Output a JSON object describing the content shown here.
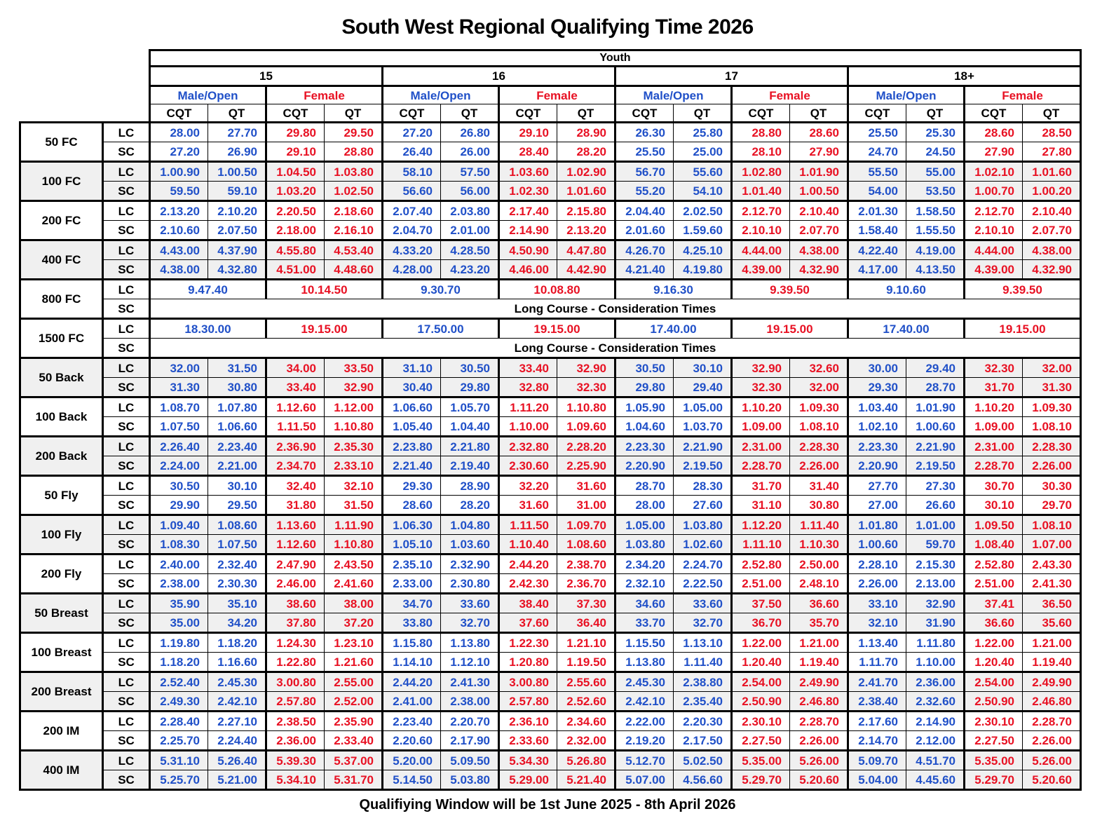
{
  "title": "South West Regional Qualifying Time 2026",
  "footer": "Qualifiying Window will be 1st June 2025 - 8th April 2026",
  "colors": {
    "male_time": "#2050C8",
    "female_time": "#E81123",
    "shaded_band": "#F0F0F0",
    "grid": "#000000"
  },
  "header": {
    "group_label": "Youth",
    "age_groups": [
      "15",
      "16",
      "17",
      "18+"
    ],
    "gender_labels": [
      "Male/Open",
      "Female"
    ],
    "time_type_labels": [
      "CQT",
      "QT"
    ],
    "course_labels": [
      "LC",
      "SC"
    ]
  },
  "consideration_note": "Long Course - Consideration Times",
  "events": [
    {
      "name": "50 FC",
      "shaded": false,
      "lc": [
        "28.00",
        "27.70",
        "29.80",
        "29.50",
        "27.20",
        "26.80",
        "29.10",
        "28.90",
        "26.30",
        "25.80",
        "28.80",
        "28.60",
        "25.50",
        "25.30",
        "28.60",
        "28.50"
      ],
      "sc": [
        "27.20",
        "26.90",
        "29.10",
        "28.80",
        "26.40",
        "26.00",
        "28.40",
        "28.20",
        "25.50",
        "25.00",
        "28.10",
        "27.90",
        "24.70",
        "24.50",
        "27.90",
        "27.80"
      ]
    },
    {
      "name": "100 FC",
      "shaded": true,
      "lc": [
        "1.00.90",
        "1.00.50",
        "1.04.50",
        "1.03.80",
        "58.10",
        "57.50",
        "1.03.60",
        "1.02.90",
        "56.70",
        "55.60",
        "1.02.80",
        "1.01.90",
        "55.50",
        "55.00",
        "1.02.10",
        "1.01.60"
      ],
      "sc": [
        "59.50",
        "59.10",
        "1.03.20",
        "1.02.50",
        "56.60",
        "56.00",
        "1.02.30",
        "1.01.60",
        "55.20",
        "54.10",
        "1.01.40",
        "1.00.50",
        "54.00",
        "53.50",
        "1.00.70",
        "1.00.20"
      ]
    },
    {
      "name": "200 FC",
      "shaded": false,
      "lc": [
        "2.13.20",
        "2.10.20",
        "2.20.50",
        "2.18.60",
        "2.07.40",
        "2.03.80",
        "2.17.40",
        "2.15.80",
        "2.04.40",
        "2.02.50",
        "2.12.70",
        "2.10.40",
        "2.01.30",
        "1.58.50",
        "2.12.70",
        "2.10.40"
      ],
      "sc": [
        "2.10.60",
        "2.07.50",
        "2.18.00",
        "2.16.10",
        "2.04.70",
        "2.01.00",
        "2.14.90",
        "2.13.20",
        "2.01.60",
        "1.59.60",
        "2.10.10",
        "2.07.70",
        "1.58.40",
        "1.55.50",
        "2.10.10",
        "2.07.70"
      ]
    },
    {
      "name": "400 FC",
      "shaded": true,
      "lc": [
        "4.43.00",
        "4.37.90",
        "4.55.80",
        "4.53.40",
        "4.33.20",
        "4.28.50",
        "4.50.90",
        "4.47.80",
        "4.26.70",
        "4.25.10",
        "4.44.00",
        "4.38.00",
        "4.22.40",
        "4.19.00",
        "4.44.00",
        "4.38.00"
      ],
      "sc": [
        "4.38.00",
        "4.32.80",
        "4.51.00",
        "4.48.60",
        "4.28.00",
        "4.23.20",
        "4.46.00",
        "4.42.90",
        "4.21.40",
        "4.19.80",
        "4.39.00",
        "4.32.90",
        "4.17.00",
        "4.13.50",
        "4.39.00",
        "4.32.90"
      ]
    },
    {
      "name": "800 FC",
      "shaded": false,
      "merged": true,
      "lc": [
        "9.47.40",
        "10.14.50",
        "9.30.70",
        "10.08.80",
        "9.16.30",
        "9.39.50",
        "9.10.60",
        "9.39.50"
      ],
      "sc_note": "Long Course - Consideration Times"
    },
    {
      "name": "1500 FC",
      "shaded": false,
      "merged": true,
      "lc": [
        "18.30.00",
        "19.15.00",
        "17.50.00",
        "19.15.00",
        "17.40.00",
        "19.15.00",
        "17.40.00",
        "19.15.00"
      ],
      "sc_note": "Long Course - Consideration Times"
    },
    {
      "name": "50 Back",
      "shaded": true,
      "lc": [
        "32.00",
        "31.50",
        "34.00",
        "33.50",
        "31.10",
        "30.50",
        "33.40",
        "32.90",
        "30.50",
        "30.10",
        "32.90",
        "32.60",
        "30.00",
        "29.40",
        "32.30",
        "32.00"
      ],
      "sc": [
        "31.30",
        "30.80",
        "33.40",
        "32.90",
        "30.40",
        "29.80",
        "32.80",
        "32.30",
        "29.80",
        "29.40",
        "32.30",
        "32.00",
        "29.30",
        "28.70",
        "31.70",
        "31.30"
      ]
    },
    {
      "name": "100 Back",
      "shaded": false,
      "lc": [
        "1.08.70",
        "1.07.80",
        "1.12.60",
        "1.12.00",
        "1.06.60",
        "1.05.70",
        "1.11.20",
        "1.10.80",
        "1.05.90",
        "1.05.00",
        "1.10.20",
        "1.09.30",
        "1.03.40",
        "1.01.90",
        "1.10.20",
        "1.09.30"
      ],
      "sc": [
        "1.07.50",
        "1.06.60",
        "1.11.50",
        "1.10.80",
        "1.05.40",
        "1.04.40",
        "1.10.00",
        "1.09.60",
        "1.04.60",
        "1.03.70",
        "1.09.00",
        "1.08.10",
        "1.02.10",
        "1.00.60",
        "1.09.00",
        "1.08.10"
      ]
    },
    {
      "name": "200 Back",
      "shaded": true,
      "lc": [
        "2.26.40",
        "2.23.40",
        "2.36.90",
        "2.35.30",
        "2.23.80",
        "2.21.80",
        "2.32.80",
        "2.28.20",
        "2.23.30",
        "2.21.90",
        "2.31.00",
        "2.28.30",
        "2.23.30",
        "2.21.90",
        "2.31.00",
        "2.28.30"
      ],
      "sc": [
        "2.24.00",
        "2.21.00",
        "2.34.70",
        "2.33.10",
        "2.21.40",
        "2.19.40",
        "2.30.60",
        "2.25.90",
        "2.20.90",
        "2.19.50",
        "2.28.70",
        "2.26.00",
        "2.20.90",
        "2.19.50",
        "2.28.70",
        "2.26.00"
      ]
    },
    {
      "name": "50 Fly",
      "shaded": false,
      "lc": [
        "30.50",
        "30.10",
        "32.40",
        "32.10",
        "29.30",
        "28.90",
        "32.20",
        "31.60",
        "28.70",
        "28.30",
        "31.70",
        "31.40",
        "27.70",
        "27.30",
        "30.70",
        "30.30"
      ],
      "sc": [
        "29.90",
        "29.50",
        "31.80",
        "31.50",
        "28.60",
        "28.20",
        "31.60",
        "31.00",
        "28.00",
        "27.60",
        "31.10",
        "30.80",
        "27.00",
        "26.60",
        "30.10",
        "29.70"
      ]
    },
    {
      "name": "100 Fly",
      "shaded": true,
      "lc": [
        "1.09.40",
        "1.08.60",
        "1.13.60",
        "1.11.90",
        "1.06.30",
        "1.04.80",
        "1.11.50",
        "1.09.70",
        "1.05.00",
        "1.03.80",
        "1.12.20",
        "1.11.40",
        "1.01.80",
        "1.01.00",
        "1.09.50",
        "1.08.10"
      ],
      "sc": [
        "1.08.30",
        "1.07.50",
        "1.12.60",
        "1.10.80",
        "1.05.10",
        "1.03.60",
        "1.10.40",
        "1.08.60",
        "1.03.80",
        "1.02.60",
        "1.11.10",
        "1.10.30",
        "1.00.60",
        "59.70",
        "1.08.40",
        "1.07.00"
      ]
    },
    {
      "name": "200 Fly",
      "shaded": false,
      "lc": [
        "2.40.00",
        "2.32.40",
        "2.47.90",
        "2.43.50",
        "2.35.10",
        "2.32.90",
        "2.44.20",
        "2.38.70",
        "2.34.20",
        "2.24.70",
        "2.52.80",
        "2.50.00",
        "2.28.10",
        "2.15.30",
        "2.52.80",
        "2.43.30"
      ],
      "sc": [
        "2.38.00",
        "2.30.30",
        "2.46.00",
        "2.41.60",
        "2.33.00",
        "2.30.80",
        "2.42.30",
        "2.36.70",
        "2.32.10",
        "2.22.50",
        "2.51.00",
        "2.48.10",
        "2.26.00",
        "2.13.00",
        "2.51.00",
        "2.41.30"
      ]
    },
    {
      "name": "50 Breast",
      "shaded": true,
      "lc": [
        "35.90",
        "35.10",
        "38.60",
        "38.00",
        "34.70",
        "33.60",
        "38.40",
        "37.30",
        "34.60",
        "33.60",
        "37.50",
        "36.60",
        "33.10",
        "32.90",
        "37.41",
        "36.50"
      ],
      "sc": [
        "35.00",
        "34.20",
        "37.80",
        "37.20",
        "33.80",
        "32.70",
        "37.60",
        "36.40",
        "33.70",
        "32.70",
        "36.70",
        "35.70",
        "32.10",
        "31.90",
        "36.60",
        "35.60"
      ]
    },
    {
      "name": "100 Breast",
      "shaded": false,
      "lc": [
        "1.19.80",
        "1.18.20",
        "1.24.30",
        "1.23.10",
        "1.15.80",
        "1.13.80",
        "1.22.30",
        "1.21.10",
        "1.15.50",
        "1.13.10",
        "1.22.00",
        "1.21.00",
        "1.13.40",
        "1.11.80",
        "1.22.00",
        "1.21.00"
      ],
      "sc": [
        "1.18.20",
        "1.16.60",
        "1.22.80",
        "1.21.60",
        "1.14.10",
        "1.12.10",
        "1.20.80",
        "1.19.50",
        "1.13.80",
        "1.11.40",
        "1.20.40",
        "1.19.40",
        "1.11.70",
        "1.10.00",
        "1.20.40",
        "1.19.40"
      ]
    },
    {
      "name": "200 Breast",
      "shaded": true,
      "lc": [
        "2.52.40",
        "2.45.30",
        "3.00.80",
        "2.55.00",
        "2.44.20",
        "2.41.30",
        "3.00.80",
        "2.55.60",
        "2.45.30",
        "2.38.80",
        "2.54.00",
        "2.49.90",
        "2.41.70",
        "2.36.00",
        "2.54.00",
        "2.49.90"
      ],
      "sc": [
        "2.49.30",
        "2.42.10",
        "2.57.80",
        "2.52.00",
        "2.41.00",
        "2.38.00",
        "2.57.80",
        "2.52.60",
        "2.42.10",
        "2.35.40",
        "2.50.90",
        "2.46.80",
        "2.38.40",
        "2.32.60",
        "2.50.90",
        "2.46.80"
      ]
    },
    {
      "name": "200 IM",
      "shaded": false,
      "lc": [
        "2.28.40",
        "2.27.10",
        "2.38.50",
        "2.35.90",
        "2.23.40",
        "2.20.70",
        "2.36.10",
        "2.34.60",
        "2.22.00",
        "2.20.30",
        "2.30.10",
        "2.28.70",
        "2.17.60",
        "2.14.90",
        "2.30.10",
        "2.28.70"
      ],
      "sc": [
        "2.25.70",
        "2.24.40",
        "2.36.00",
        "2.33.40",
        "2.20.60",
        "2.17.90",
        "2.33.60",
        "2.32.00",
        "2.19.20",
        "2.17.50",
        "2.27.50",
        "2.26.00",
        "2.14.70",
        "2.12.00",
        "2.27.50",
        "2.26.00"
      ]
    },
    {
      "name": "400 IM",
      "shaded": true,
      "lc": [
        "5.31.10",
        "5.26.40",
        "5.39.30",
        "5.37.00",
        "5.20.00",
        "5.09.50",
        "5.34.30",
        "5.26.80",
        "5.12.70",
        "5.02.50",
        "5.35.00",
        "5.26.00",
        "5.09.70",
        "4.51.70",
        "5.35.00",
        "5.26.00"
      ],
      "sc": [
        "5.25.70",
        "5.21.00",
        "5.34.10",
        "5.31.70",
        "5.14.50",
        "5.03.80",
        "5.29.00",
        "5.21.40",
        "5.07.00",
        "4.56.60",
        "5.29.70",
        "5.20.60",
        "5.04.00",
        "4.45.60",
        "5.29.70",
        "5.20.60"
      ]
    }
  ]
}
